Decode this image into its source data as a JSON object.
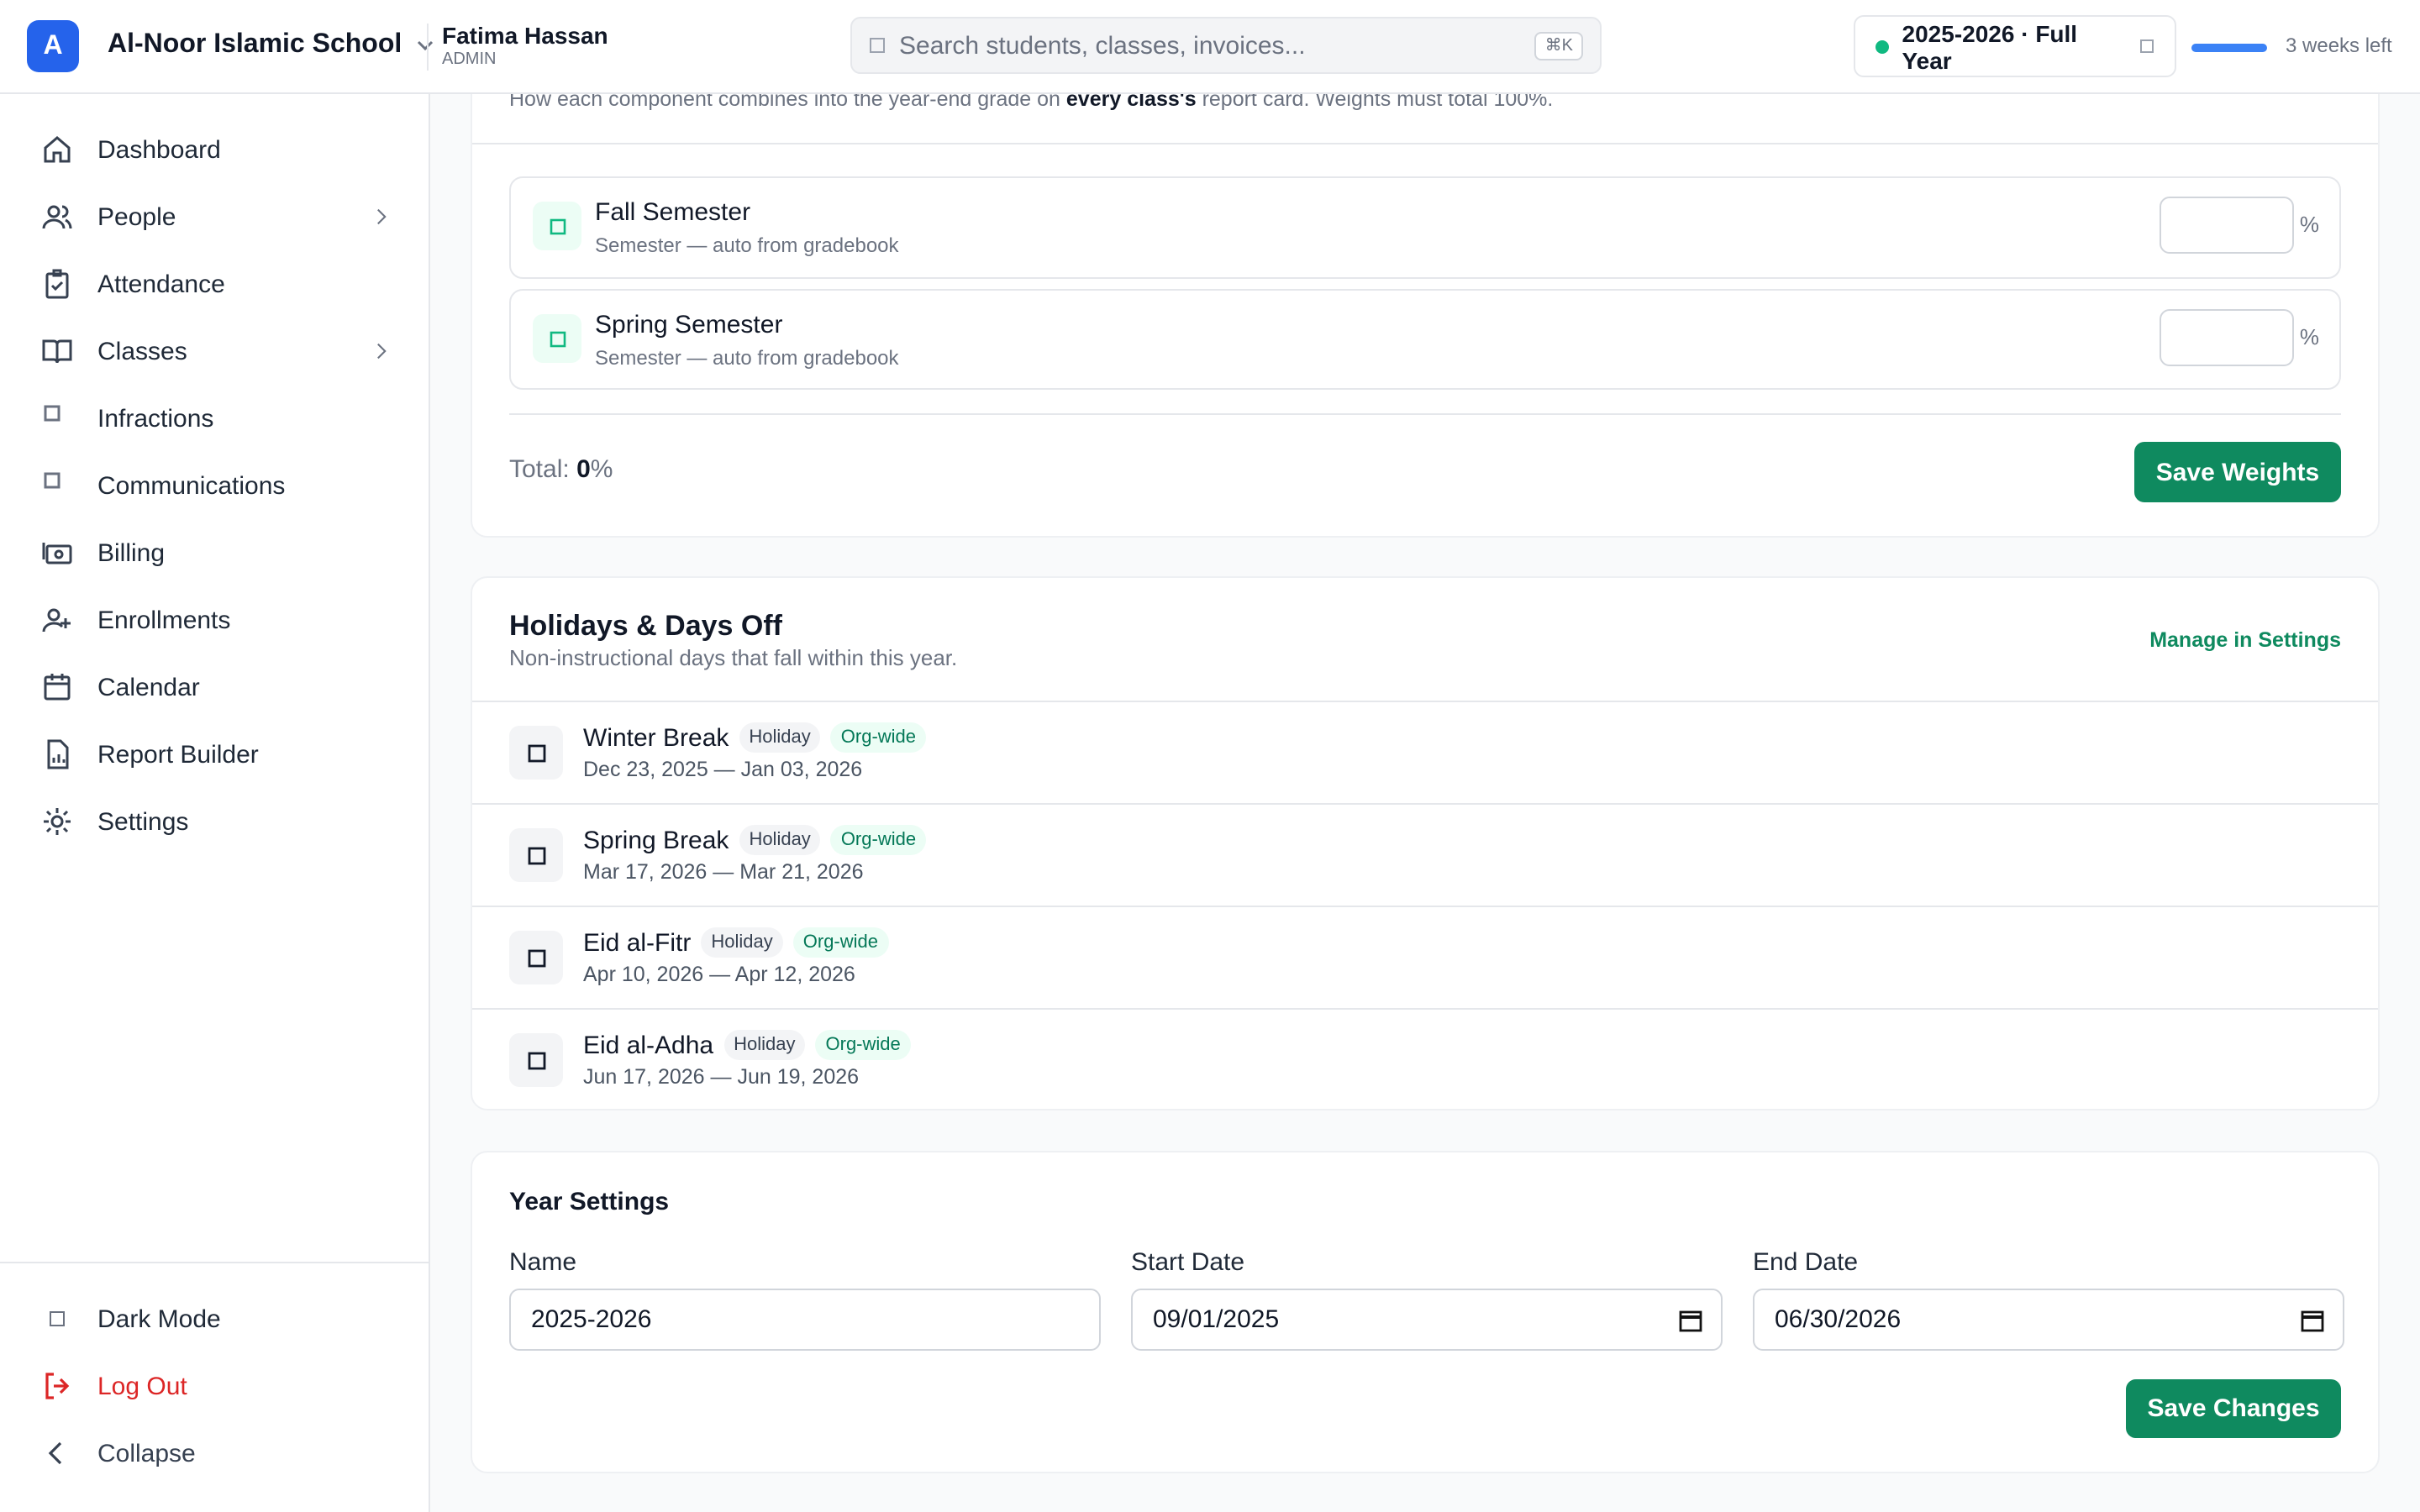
{
  "header": {
    "logo_letter": "A",
    "school": "Al-Noor Islamic School",
    "user_name": "Fatima Hassan",
    "user_role": "ADMIN",
    "search_placeholder": "Search students, classes, invoices...",
    "shortcut": "⌘K",
    "year_pill": "2025-2026 · Full Year",
    "time_left": "3 weeks left"
  },
  "sidebar": {
    "nav": [
      "Dashboard",
      "People",
      "Attendance",
      "Classes",
      "Infractions",
      "Communications",
      "Billing",
      "Enrollments",
      "Calendar",
      "Report Builder",
      "Settings"
    ],
    "dark_mode": "Dark Mode",
    "log_out": "Log Out",
    "collapse": "Collapse"
  },
  "grade_weights": {
    "description_before": "How each component combines into the year-end grade on ",
    "description_bold": "every class's",
    "description_after": " report card. Weights must total 100%.",
    "components": [
      {
        "name": "Fall Semester",
        "detail": "Semester — auto from gradebook"
      },
      {
        "name": "Spring Semester",
        "detail": "Semester — auto from gradebook"
      }
    ],
    "percent_sign": "%",
    "total_label": "Total: ",
    "total_value": "0",
    "save_button": "Save Weights"
  },
  "holidays": {
    "title": "Holidays & Days Off",
    "subtitle": "Non-instructional days that fall within this year.",
    "manage_link": "Manage in Settings",
    "items": [
      {
        "name": "Winter Break",
        "type": "Holiday",
        "scope": "Org-wide",
        "dates": "Dec 23, 2025 — Jan 03, 2026"
      },
      {
        "name": "Spring Break",
        "type": "Holiday",
        "scope": "Org-wide",
        "dates": "Mar 17, 2026 — Mar 21, 2026"
      },
      {
        "name": "Eid al-Fitr",
        "type": "Holiday",
        "scope": "Org-wide",
        "dates": "Apr 10, 2026 — Apr 12, 2026"
      },
      {
        "name": "Eid al-Adha",
        "type": "Holiday",
        "scope": "Org-wide",
        "dates": "Jun 17, 2026 — Jun 19, 2026"
      }
    ]
  },
  "year_settings": {
    "title": "Year Settings",
    "fields": [
      {
        "label": "Name",
        "value": "2025-2026"
      },
      {
        "label": "Start Date",
        "value": "09/01/2025"
      },
      {
        "label": "End Date",
        "value": "06/30/2026"
      }
    ],
    "save_button": "Save Changes"
  }
}
